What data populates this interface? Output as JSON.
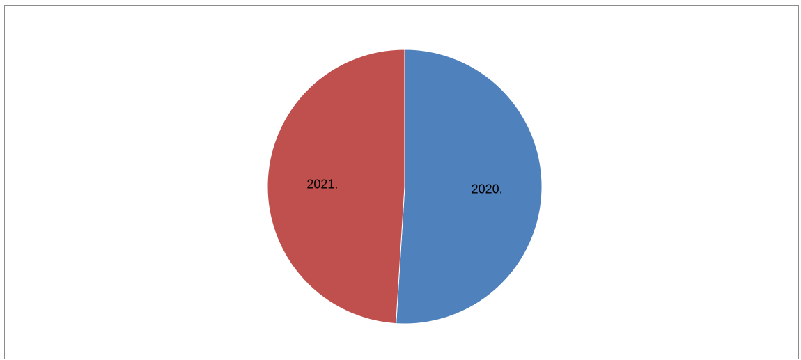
{
  "chart_data": {
    "type": "pie",
    "categories": [
      "2020.",
      "2021."
    ],
    "values": [
      51,
      49
    ],
    "colors": [
      "#4f81bd",
      "#c0504d"
    ],
    "start_angle_deg": 0,
    "direction": "clockwise",
    "title": "",
    "legend": "none",
    "data_labels": "category-inside"
  }
}
